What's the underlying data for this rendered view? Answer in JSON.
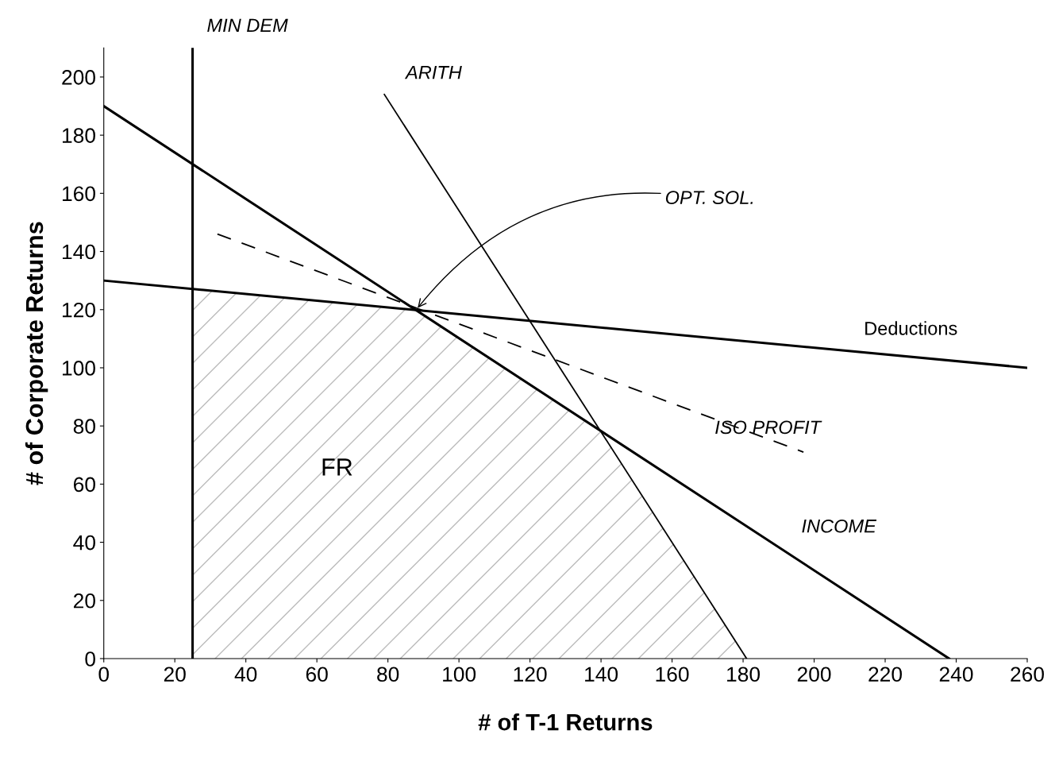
{
  "chart_data": {
    "type": "line",
    "xlabel": "# of T-1 Returns",
    "ylabel": "# of Corporate Returns",
    "xlim": [
      0,
      260
    ],
    "xticks": [
      0,
      20,
      40,
      60,
      80,
      100,
      120,
      140,
      160,
      180,
      200,
      220,
      240,
      260
    ],
    "ylim": [
      0,
      210
    ],
    "yticks": [
      0,
      20,
      40,
      60,
      80,
      100,
      120,
      140,
      160,
      180,
      200
    ],
    "series": [
      {
        "name": "INCOME",
        "color": "#000000",
        "x": [
          0,
          238
        ],
        "values": [
          190,
          0
        ],
        "line_style": "solid"
      },
      {
        "name": "Deductions",
        "color": "#000000",
        "x": [
          0,
          260
        ],
        "values": [
          130,
          100
        ],
        "line_style": "solid"
      },
      {
        "name": "ARITH",
        "color": "#000000",
        "x": [
          79,
          181
        ],
        "values": [
          194,
          0
        ],
        "line_style": "solid"
      },
      {
        "name": "ISO PROFIT",
        "color": "#000000",
        "x": [
          32,
          197
        ],
        "values": [
          146,
          71
        ],
        "line_style": "dashed"
      }
    ],
    "ref_lines": [
      {
        "axis": "x",
        "value": 25,
        "label": "MIN DEM",
        "color": "#000000"
      }
    ],
    "annotations": [
      {
        "text": "OPT. SOL.",
        "x": 88,
        "y": 120
      },
      "FR"
    ],
    "grid": false,
    "legend": false
  }
}
